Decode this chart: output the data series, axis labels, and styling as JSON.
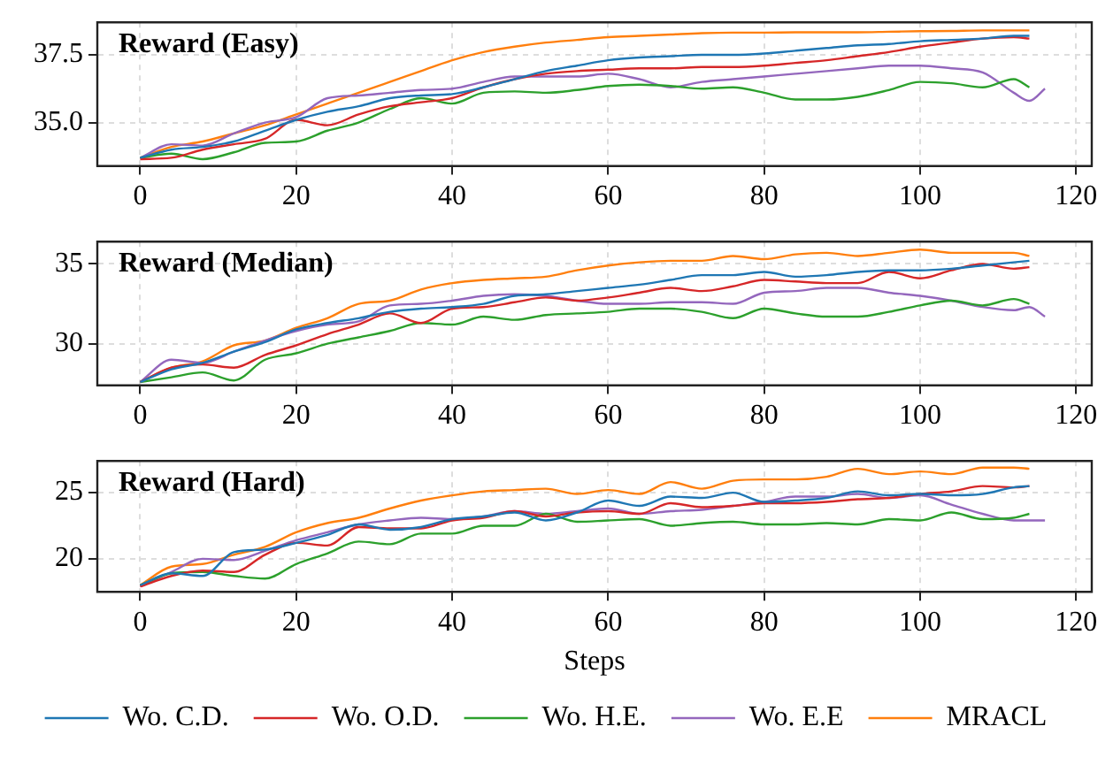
{
  "chart_data": [
    {
      "type": "line",
      "title": "Reward (Easy)",
      "x": [
        0,
        4,
        8,
        12,
        16,
        20,
        24,
        28,
        32,
        36,
        40,
        44,
        48,
        52,
        56,
        60,
        64,
        68,
        72,
        76,
        80,
        84,
        88,
        92,
        96,
        100,
        104,
        108,
        112,
        114
      ],
      "xlim": [
        -5.5,
        122
      ],
      "xticks": [
        0,
        20,
        40,
        60,
        80,
        100,
        120
      ],
      "ylim": [
        33.4,
        38.7
      ],
      "yticks": [
        {
          "value": 35,
          "label": "35.0"
        },
        {
          "value": 37.5,
          "label": "37.5"
        }
      ],
      "grid": true,
      "line_style": "solid",
      "marker": "none",
      "series": [
        {
          "color": "#1f77b4",
          "values": [
            33.7,
            34.0,
            34.1,
            34.3,
            34.7,
            35.1,
            35.4,
            35.6,
            35.9,
            36.0,
            36.05,
            36.3,
            36.6,
            36.9,
            37.1,
            37.3,
            37.4,
            37.45,
            37.5,
            37.5,
            37.55,
            37.65,
            37.75,
            37.85,
            37.9,
            38.0,
            38.05,
            38.1,
            38.2,
            38.2
          ]
        },
        {
          "color": "#d62728",
          "values": [
            33.65,
            33.7,
            34.0,
            34.2,
            34.4,
            35.1,
            34.9,
            35.3,
            35.6,
            35.75,
            35.9,
            36.3,
            36.6,
            36.8,
            36.9,
            36.95,
            37.0,
            37.0,
            37.05,
            37.05,
            37.1,
            37.2,
            37.3,
            37.45,
            37.6,
            37.8,
            37.95,
            38.1,
            38.15,
            38.1
          ]
        },
        {
          "color": "#2ca02c",
          "values": [
            33.7,
            33.85,
            33.65,
            33.9,
            34.25,
            34.3,
            34.7,
            35.0,
            35.5,
            35.9,
            35.7,
            36.1,
            36.15,
            36.1,
            36.2,
            36.35,
            36.4,
            36.35,
            36.25,
            36.3,
            36.1,
            35.85,
            35.85,
            35.95,
            36.2,
            36.5,
            36.45,
            36.3,
            36.6,
            36.3
          ]
        },
        {
          "color": "#9467bd",
          "x": [
            0,
            4,
            8,
            12,
            16,
            20,
            24,
            28,
            32,
            36,
            40,
            44,
            48,
            52,
            56,
            60,
            64,
            68,
            72,
            76,
            80,
            84,
            88,
            92,
            96,
            100,
            104,
            108,
            112,
            114,
            116
          ],
          "values": [
            33.7,
            34.2,
            34.15,
            34.6,
            35.0,
            35.2,
            35.9,
            36.0,
            36.1,
            36.2,
            36.25,
            36.5,
            36.7,
            36.7,
            36.7,
            36.8,
            36.6,
            36.3,
            36.5,
            36.6,
            36.7,
            36.8,
            36.9,
            37.0,
            37.1,
            37.1,
            37.0,
            36.85,
            36.1,
            35.8,
            36.25
          ]
        },
        {
          "color": "#ff7f0e",
          "values": [
            33.7,
            34.1,
            34.3,
            34.6,
            34.9,
            35.3,
            35.7,
            36.1,
            36.5,
            36.9,
            37.3,
            37.6,
            37.8,
            37.95,
            38.05,
            38.15,
            38.2,
            38.25,
            38.3,
            38.32,
            38.32,
            38.33,
            38.33,
            38.33,
            38.35,
            38.37,
            38.38,
            38.4,
            38.4,
            38.4
          ]
        }
      ]
    },
    {
      "type": "line",
      "title": "Reward (Median)",
      "x": [
        0,
        4,
        8,
        12,
        16,
        20,
        24,
        28,
        32,
        36,
        40,
        44,
        48,
        52,
        56,
        60,
        64,
        68,
        72,
        76,
        80,
        84,
        88,
        92,
        96,
        100,
        104,
        108,
        112,
        114
      ],
      "xlim": [
        -5.5,
        122
      ],
      "xticks": [
        0,
        20,
        40,
        60,
        80,
        100,
        120
      ],
      "ylim": [
        27.4,
        36.4
      ],
      "yticks": [
        30,
        35
      ],
      "grid": true,
      "line_style": "solid",
      "marker": "none",
      "series": [
        {
          "color": "#1f77b4",
          "values": [
            27.6,
            28.4,
            28.8,
            29.5,
            30.1,
            30.9,
            31.3,
            31.6,
            32.0,
            32.2,
            32.3,
            32.5,
            33.0,
            33.1,
            33.3,
            33.5,
            33.7,
            34.0,
            34.3,
            34.3,
            34.5,
            34.2,
            34.3,
            34.5,
            34.6,
            34.6,
            34.7,
            34.9,
            35.1,
            35.2
          ]
        },
        {
          "color": "#d62728",
          "values": [
            27.6,
            28.5,
            28.7,
            28.5,
            29.3,
            29.9,
            30.6,
            31.2,
            31.9,
            31.3,
            32.2,
            32.3,
            32.6,
            32.9,
            32.7,
            32.9,
            33.2,
            33.5,
            33.3,
            33.6,
            34.0,
            33.9,
            33.8,
            33.8,
            34.5,
            34.1,
            34.6,
            35.0,
            34.7,
            34.8
          ]
        },
        {
          "color": "#2ca02c",
          "values": [
            27.6,
            27.9,
            28.2,
            27.7,
            29.0,
            29.4,
            30.0,
            30.4,
            30.8,
            31.3,
            31.2,
            31.7,
            31.5,
            31.8,
            31.9,
            32.0,
            32.2,
            32.2,
            32.0,
            31.6,
            32.2,
            31.9,
            31.7,
            31.7,
            32.0,
            32.4,
            32.7,
            32.4,
            32.8,
            32.5
          ]
        },
        {
          "color": "#9467bd",
          "x": [
            0,
            4,
            8,
            12,
            16,
            20,
            24,
            28,
            32,
            36,
            40,
            44,
            48,
            52,
            56,
            60,
            64,
            68,
            72,
            76,
            80,
            84,
            88,
            92,
            96,
            100,
            104,
            108,
            112,
            114,
            116
          ],
          "values": [
            27.6,
            29.0,
            28.8,
            29.5,
            30.2,
            30.8,
            31.2,
            31.4,
            32.4,
            32.5,
            32.7,
            33.0,
            33.1,
            33.0,
            32.7,
            32.5,
            32.5,
            32.6,
            32.6,
            32.5,
            33.2,
            33.3,
            33.5,
            33.5,
            33.2,
            33.0,
            32.7,
            32.3,
            32.1,
            32.3,
            31.7
          ]
        },
        {
          "color": "#ff7f0e",
          "values": [
            27.6,
            28.5,
            28.9,
            29.9,
            30.2,
            31.0,
            31.6,
            32.5,
            32.7,
            33.4,
            33.8,
            34.0,
            34.1,
            34.2,
            34.6,
            34.9,
            35.1,
            35.2,
            35.2,
            35.5,
            35.3,
            35.6,
            35.7,
            35.5,
            35.7,
            35.9,
            35.7,
            35.7,
            35.7,
            35.5
          ]
        }
      ]
    },
    {
      "type": "line",
      "title": "Reward (Hard)",
      "xlabel": "Steps",
      "x": [
        0,
        4,
        8,
        12,
        16,
        20,
        24,
        28,
        32,
        36,
        40,
        44,
        48,
        52,
        56,
        60,
        64,
        68,
        72,
        76,
        80,
        84,
        88,
        92,
        96,
        100,
        104,
        108,
        112,
        114
      ],
      "xlim": [
        -5.5,
        122
      ],
      "xticks": [
        0,
        20,
        40,
        60,
        80,
        100,
        120
      ],
      "ylim": [
        17.5,
        27.4
      ],
      "yticks": [
        20,
        25
      ],
      "grid": true,
      "legend": "bottom",
      "line_style": "solid",
      "marker": "none",
      "series": [
        {
          "name": "Wo. C.D.",
          "color": "#1f77b4",
          "values": [
            18.0,
            18.9,
            18.7,
            20.5,
            20.7,
            21.2,
            21.8,
            22.6,
            22.2,
            22.4,
            23.0,
            23.2,
            23.5,
            22.9,
            23.5,
            24.4,
            24.0,
            24.7,
            24.6,
            25.0,
            24.3,
            24.4,
            24.6,
            25.1,
            24.8,
            24.9,
            24.8,
            24.9,
            25.4,
            25.5
          ]
        },
        {
          "name": "Wo. O.D.",
          "color": "#d62728",
          "values": [
            17.9,
            18.7,
            19.1,
            19.0,
            20.3,
            21.2,
            21.0,
            22.4,
            22.3,
            22.3,
            22.9,
            23.1,
            23.6,
            23.2,
            23.5,
            23.6,
            23.4,
            24.2,
            23.9,
            24.0,
            24.2,
            24.2,
            24.3,
            24.5,
            24.6,
            24.9,
            25.1,
            25.5,
            25.4,
            25.5
          ]
        },
        {
          "name": "Wo. H.E.",
          "color": "#2ca02c",
          "values": [
            18.0,
            18.9,
            19.0,
            18.7,
            18.5,
            19.6,
            20.4,
            21.3,
            21.1,
            21.9,
            21.9,
            22.5,
            22.5,
            23.4,
            22.8,
            22.9,
            23.0,
            22.5,
            22.7,
            22.8,
            22.6,
            22.6,
            22.7,
            22.6,
            23.0,
            22.9,
            23.5,
            23.0,
            23.1,
            23.4
          ]
        },
        {
          "name": "Wo. E.E",
          "color": "#9467bd",
          "x": [
            0,
            4,
            8,
            12,
            16,
            20,
            24,
            28,
            32,
            36,
            40,
            44,
            48,
            52,
            56,
            60,
            64,
            68,
            72,
            76,
            80,
            84,
            88,
            92,
            96,
            100,
            104,
            108,
            112,
            114,
            116
          ],
          "values": [
            17.9,
            19.0,
            20.0,
            19.9,
            20.6,
            21.4,
            22.0,
            22.6,
            22.9,
            23.1,
            23.0,
            23.2,
            23.6,
            23.4,
            23.6,
            23.8,
            23.4,
            23.6,
            23.7,
            24.0,
            24.3,
            24.7,
            24.7,
            24.9,
            24.6,
            24.8,
            24.1,
            23.4,
            22.9,
            22.9,
            22.9
          ]
        },
        {
          "name": "MRACL",
          "color": "#ff7f0e",
          "values": [
            18.0,
            19.4,
            19.6,
            20.3,
            20.9,
            22.0,
            22.7,
            23.1,
            23.8,
            24.4,
            24.8,
            25.1,
            25.2,
            25.3,
            24.9,
            25.2,
            24.9,
            25.8,
            25.3,
            25.9,
            26.0,
            26.0,
            26.2,
            26.8,
            26.4,
            26.6,
            26.4,
            26.9,
            26.9,
            26.8
          ]
        }
      ]
    }
  ]
}
